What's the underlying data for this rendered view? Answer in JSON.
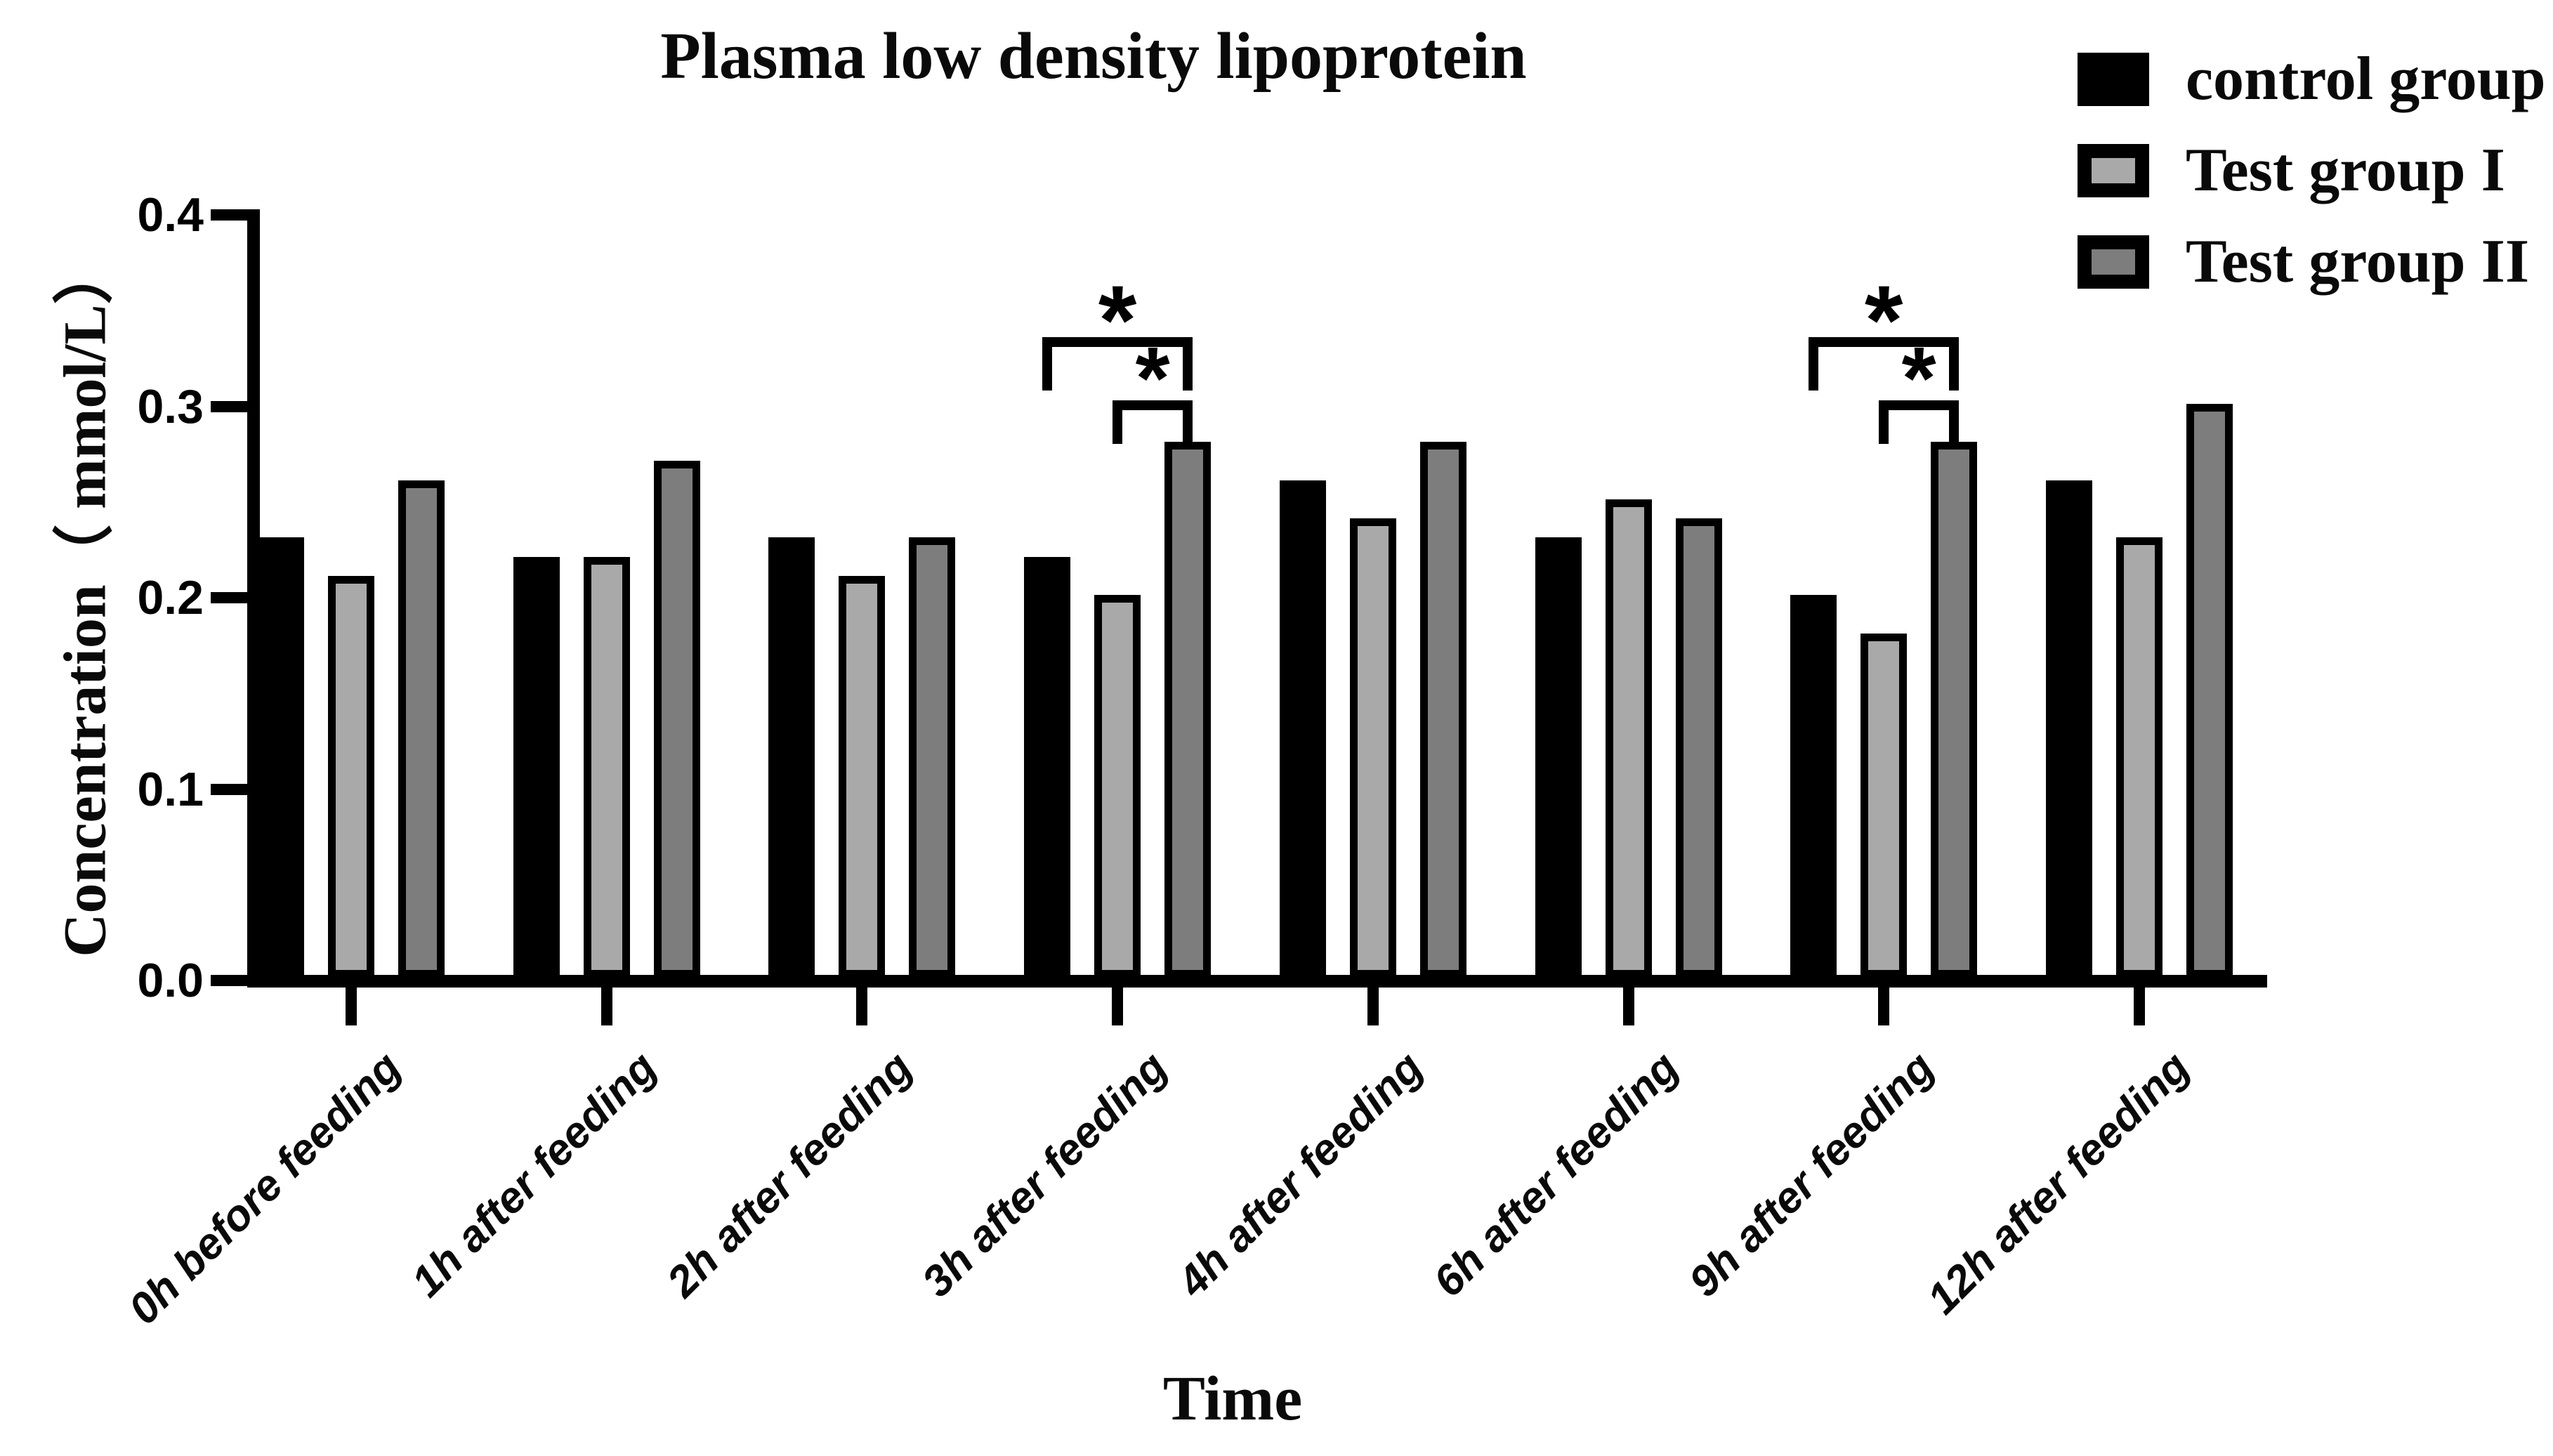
{
  "chart_data": {
    "type": "bar",
    "title": "Plasma low density lipoprotein",
    "xlabel": "Time",
    "ylabel": "Concentration（ mmol/L）",
    "ylim": [
      0,
      0.4
    ],
    "y_ticks": [
      "0.0",
      "0.1",
      "0.2",
      "0.3",
      "0.4"
    ],
    "grid": false,
    "legend_position": "top-right",
    "categories": [
      "0h before feeding",
      "1h after feeding",
      "2h after feeding",
      "3h after feeding",
      "4h after feeding",
      "6h after feeding",
      "9h after feeding",
      "12h after feeding"
    ],
    "series": [
      {
        "name": "control group",
        "fill": "#000000",
        "values": [
          0.23,
          0.22,
          0.23,
          0.22,
          0.26,
          0.23,
          0.2,
          0.26
        ]
      },
      {
        "name": "Test group I",
        "fill": "#a9a9a9",
        "values": [
          0.21,
          0.22,
          0.21,
          0.2,
          0.24,
          0.25,
          0.18,
          0.23
        ]
      },
      {
        "name": "Test group II",
        "fill": "#7d7d7d",
        "values": [
          0.26,
          0.27,
          0.23,
          0.28,
          0.28,
          0.24,
          0.28,
          0.3
        ]
      }
    ],
    "significance": [
      {
        "category": "3h after feeding",
        "comparisons": [
          {
            "from": "control group",
            "to": "Test group II",
            "label": "*"
          },
          {
            "from": "Test group I",
            "to": "Test group II",
            "label": "*"
          }
        ]
      },
      {
        "category": "9h after feeding",
        "comparisons": [
          {
            "from": "control group",
            "to": "Test group II",
            "label": "*"
          },
          {
            "from": "Test group I",
            "to": "Test group II",
            "label": "*"
          }
        ]
      }
    ],
    "colors": {
      "axis": "#000000",
      "text": "#0a0a0a",
      "background": "#ffffff"
    }
  }
}
